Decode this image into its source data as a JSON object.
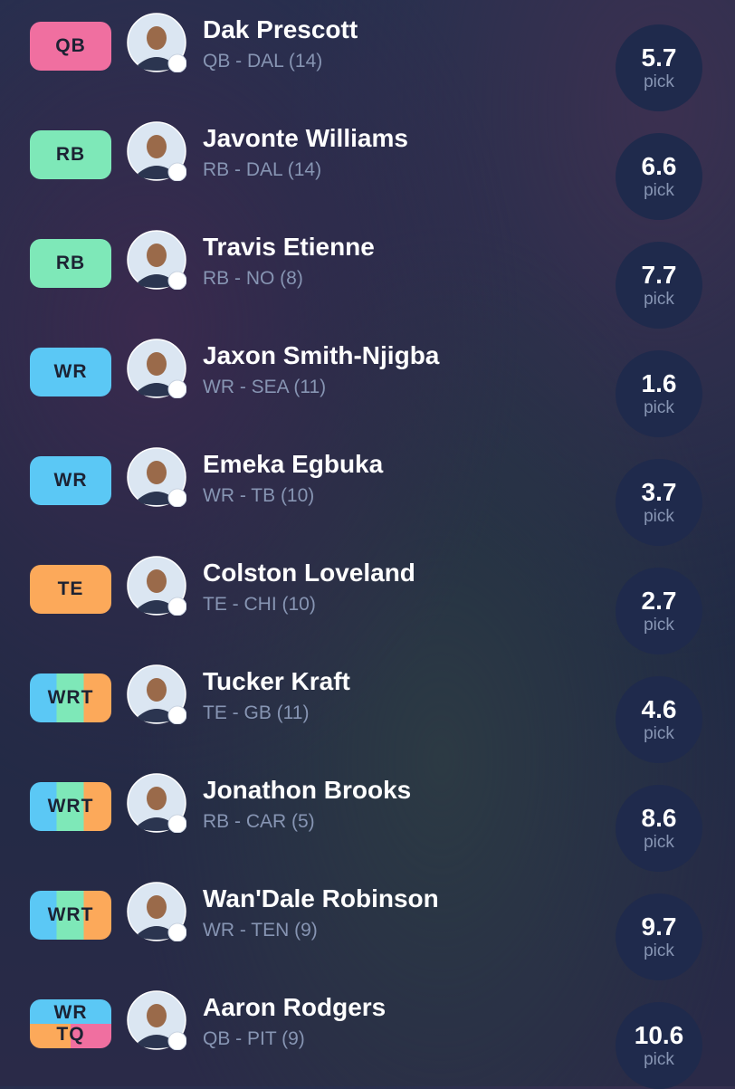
{
  "rows": [
    {
      "badge": [
        "QB"
      ],
      "badge_color": "#f06fa0",
      "name": "Dak Prescott",
      "info": "QB - DAL (14)",
      "pick": 5.7,
      "pick_label": "pick"
    },
    {
      "badge": [
        "RB"
      ],
      "badge_color": "#7ee8b8",
      "name": "Javonte Williams",
      "info": "RB - DAL (14)",
      "pick": 6.6,
      "pick_label": "pick"
    },
    {
      "badge": [
        "RB"
      ],
      "badge_color": "#7ee8b8",
      "name": "Travis Etienne",
      "info": "RB - NO (8)",
      "pick": 7.7,
      "pick_label": "pick"
    },
    {
      "badge": [
        "WR"
      ],
      "badge_color": "#5bc8f5",
      "name": "Jaxon Smith-Njigba",
      "info": "WR - SEA (11)",
      "pick": 1.6,
      "pick_label": "pick"
    },
    {
      "badge": [
        "WR"
      ],
      "badge_color": "#5bc8f5",
      "name": "Emeka Egbuka",
      "info": "WR - TB (10)",
      "pick": 3.7,
      "pick_label": "pick"
    },
    {
      "badge": [
        "TE"
      ],
      "badge_color": "#fca95a",
      "name": "Colston Loveland",
      "info": "TE - CHI (10)",
      "pick": 2.7,
      "pick_label": "pick"
    },
    {
      "badge": [
        "WRT"
      ],
      "badge_color": "linear-gradient(90deg,#5bc8f5 0 33%,#7ee8b8 33% 66%,#fca95a 66%)",
      "name": "Tucker Kraft",
      "info": "TE - GB (11)",
      "pick": 4.6,
      "pick_label": "pick"
    },
    {
      "badge": [
        "WRT"
      ],
      "badge_color": "linear-gradient(90deg,#5bc8f5 0 33%,#7ee8b8 33% 66%,#fca95a 66%)",
      "name": "Jonathon Brooks",
      "info": "RB - CAR (5)",
      "pick": 8.6,
      "pick_label": "pick"
    },
    {
      "badge": [
        "WRT"
      ],
      "badge_color": "linear-gradient(90deg,#5bc8f5 0 33%,#7ee8b8 33% 66%,#fca95a 66%)",
      "name": "Wan'Dale Robinson",
      "info": "WR - TEN (9)",
      "pick": 9.7,
      "pick_label": "pick"
    },
    {
      "badge": [
        "WR",
        "TQ"
      ],
      "badge_color": "linear-gradient(180deg,#5bc8f5 0 50%,transparent 50%),linear-gradient(90deg,#fca95a 0 50%,#f06fa0 50%)",
      "name": "Aaron Rodgers",
      "info": "QB - PIT (9)",
      "pick": 10.6,
      "pick_label": "pick"
    }
  ]
}
